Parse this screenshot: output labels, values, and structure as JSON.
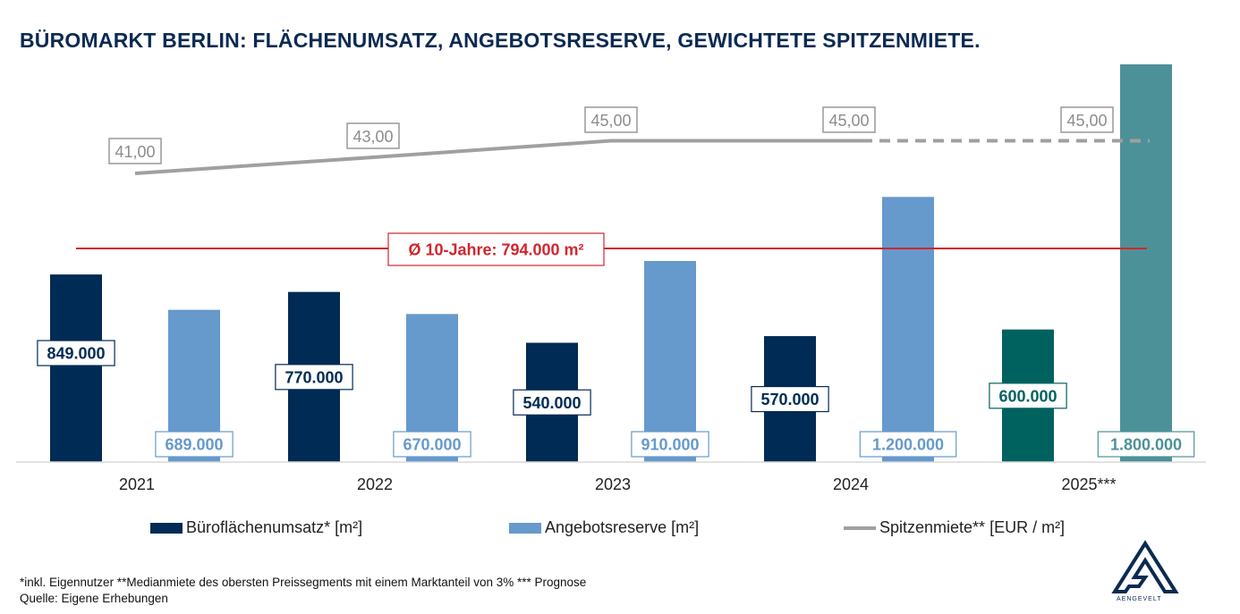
{
  "title": "BÜROMARKT BERLIN: FLÄCHENUMSATZ, ANGEBOTSRESERVE, GEWICHTETE SPITZENMIETE.",
  "chart_data": {
    "type": "bar",
    "categories": [
      "2021",
      "2022",
      "2023",
      "2024",
      "2025***"
    ],
    "series": [
      {
        "name": "Büroflächenumsatz* [m²]",
        "kind": "bar",
        "values": [
          849000,
          770000,
          540000,
          570000,
          600000
        ],
        "labels": [
          "849.000",
          "770.000",
          "540.000",
          "570.000",
          "600.000"
        ],
        "color": "#002b54",
        "forecast_color": "#00625e"
      },
      {
        "name": "Angebotsreserve [m²]",
        "kind": "bar",
        "values": [
          689000,
          670000,
          910000,
          1200000,
          1800000
        ],
        "labels": [
          "689.000",
          "670.000",
          "910.000",
          "1.200.000",
          "1.800.000"
        ],
        "color": "#6699cc",
        "forecast_color": "#4d9198"
      },
      {
        "name": "Spitzenmiete** [EUR / m²]",
        "kind": "line",
        "values": [
          41.0,
          43.0,
          45.0,
          45.0,
          45.0
        ],
        "labels": [
          "41,00",
          "43,00",
          "45,00",
          "45,00",
          "45,00"
        ],
        "color": "#a0a0a0",
        "dashed_from_index": 3
      }
    ],
    "reference_line": {
      "label": "Ø 10-Jahre: 794.000 m²",
      "value": 794000,
      "color": "#d0262d"
    },
    "forecast_index": 4,
    "ylim": [
      0,
      1800000
    ],
    "rent_ylim": [
      0,
      60
    ],
    "legend_position": "bottom",
    "grid": false
  },
  "legend": {
    "bar1": "Büroflächenumsatz* [m²]",
    "bar2": "Angebotsreserve [m²]",
    "line": "Spitzenmiete** [EUR / m²]"
  },
  "footnote": {
    "line1": "*inkl. Eigennutzer **Medianmiete des obersten Preissegments mit einem Marktanteil von 3% *** Prognose",
    "line2": "Quelle: Eigene Erhebungen"
  },
  "logo": {
    "text": "AENGEVELT",
    "color": "#0b2a52"
  }
}
